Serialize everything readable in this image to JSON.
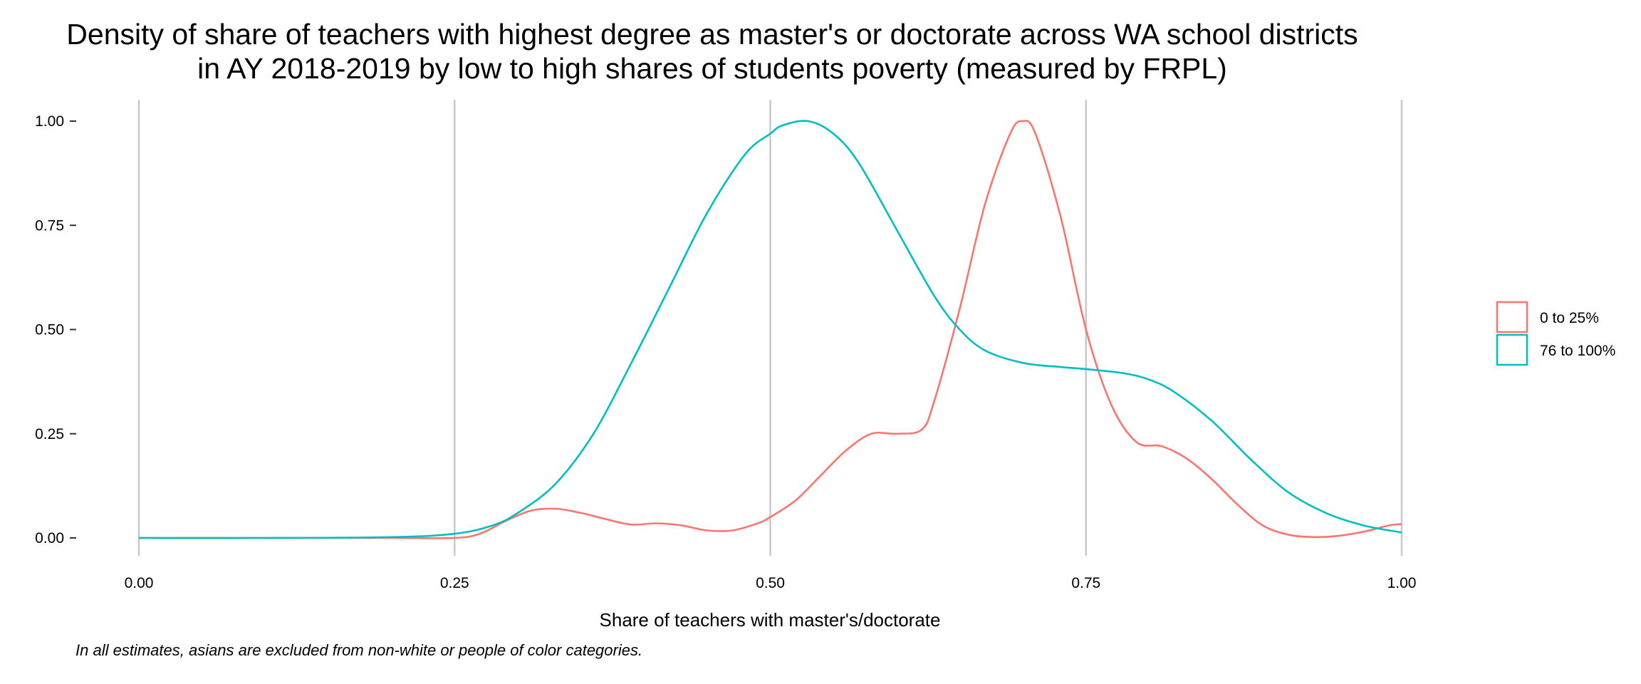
{
  "chart_data": {
    "type": "line",
    "title": [
      "Density of share of teachers with highest degree as master's or doctorate across WA school districts",
      "in AY 2018-2019 by low to high shares of students poverty (measured by FRPL)"
    ],
    "xlabel": "Share of teachers with master's/doctorate",
    "ylabel": "",
    "caption": "In all estimates, asians are excluded from non-white or people of color categories.",
    "xlim": [
      0,
      1
    ],
    "ylim": [
      0,
      1
    ],
    "x_ticks": [
      0,
      0.25,
      0.5,
      0.75,
      1
    ],
    "x_tick_labels": [
      "0.00",
      "0.25",
      "0.50",
      "0.75",
      "1.00"
    ],
    "y_ticks": [
      0,
      0.25,
      0.5,
      0.75,
      1
    ],
    "y_tick_labels": [
      "0.00",
      "0.25",
      "0.50",
      "0.75",
      "1.00"
    ],
    "grid": "vertical-major",
    "legend_position": "right",
    "series": [
      {
        "name": "0 to 25%",
        "color": "#F8766D",
        "x": [
          0,
          0.1,
          0.2,
          0.25,
          0.27,
          0.29,
          0.31,
          0.33,
          0.35,
          0.37,
          0.39,
          0.41,
          0.43,
          0.45,
          0.47,
          0.49,
          0.5,
          0.52,
          0.54,
          0.56,
          0.58,
          0.6,
          0.62,
          0.63,
          0.65,
          0.67,
          0.69,
          0.7,
          0.71,
          0.73,
          0.75,
          0.77,
          0.79,
          0.81,
          0.83,
          0.85,
          0.87,
          0.89,
          0.91,
          0.93,
          0.95,
          0.97,
          0.99,
          1
        ],
        "y": [
          0,
          0,
          0,
          0,
          0.01,
          0.04,
          0.065,
          0.07,
          0.06,
          0.045,
          0.032,
          0.035,
          0.03,
          0.018,
          0.018,
          0.035,
          0.05,
          0.09,
          0.15,
          0.21,
          0.25,
          0.25,
          0.26,
          0.33,
          0.55,
          0.8,
          0.97,
          1.0,
          0.97,
          0.77,
          0.5,
          0.32,
          0.23,
          0.22,
          0.19,
          0.14,
          0.08,
          0.03,
          0.008,
          0.002,
          0.005,
          0.015,
          0.03,
          0.033
        ]
      },
      {
        "name": "76 to 100%",
        "color": "#00BFC4",
        "x": [
          0,
          0.1,
          0.2,
          0.25,
          0.28,
          0.3,
          0.33,
          0.36,
          0.39,
          0.42,
          0.45,
          0.48,
          0.5,
          0.51,
          0.53,
          0.55,
          0.57,
          0.6,
          0.63,
          0.65,
          0.67,
          0.7,
          0.73,
          0.75,
          0.78,
          0.8,
          0.82,
          0.85,
          0.88,
          0.91,
          0.94,
          0.97,
          1
        ],
        "y": [
          0,
          0,
          0.002,
          0.01,
          0.03,
          0.06,
          0.13,
          0.25,
          0.42,
          0.6,
          0.78,
          0.92,
          0.97,
          0.99,
          1.0,
          0.97,
          0.9,
          0.74,
          0.58,
          0.5,
          0.45,
          0.42,
          0.41,
          0.405,
          0.395,
          0.38,
          0.35,
          0.28,
          0.19,
          0.11,
          0.06,
          0.03,
          0.013
        ]
      }
    ]
  }
}
